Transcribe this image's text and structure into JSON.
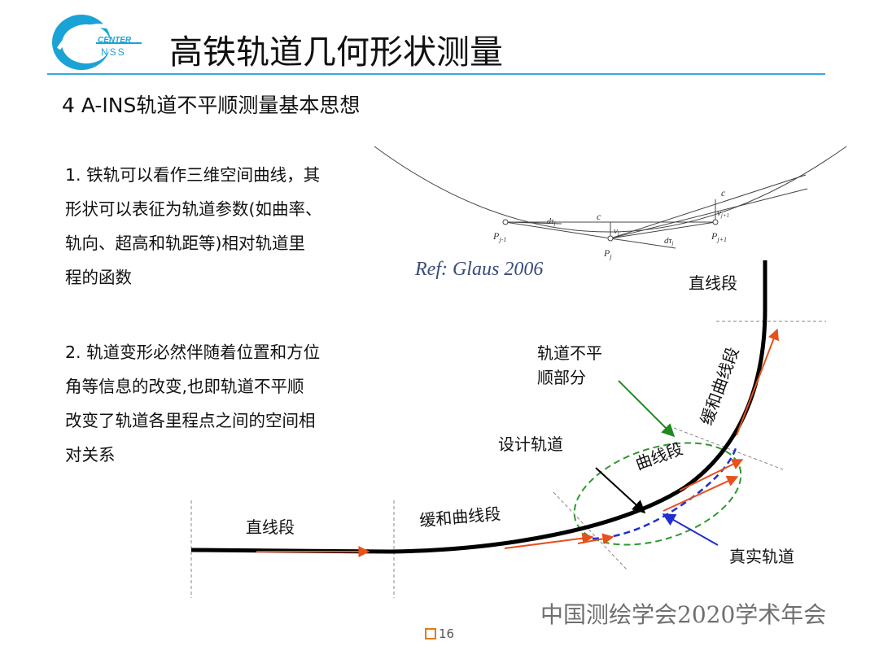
{
  "header": {
    "logo_text_top": "CENTER",
    "logo_text_bottom": "NSS",
    "title": "高铁轨道几何形状测量"
  },
  "section": {
    "heading": "4 A-INS轨道不平顺测量基本思想"
  },
  "paragraphs": {
    "p1": [
      "1. 铁轨可以看作三维空间曲线，其",
      "形状可以表征为轨道参数(如曲率、",
      "轨向、超高和轨距等)相对轨道里",
      "程的函数"
    ],
    "p2": [
      "2. 轨道变形必然伴随着位置和方位",
      "角等信息的改变,也即轨道不平顺",
      "改变了轨道各里程点之间的空间相",
      "对关系"
    ]
  },
  "ref_figure": {
    "ref_text": "Ref: Glaus 2006",
    "labels": {
      "c_top": "c",
      "c_mid": "c",
      "p_left": "P",
      "p_left_sub": "j-1",
      "p_mid": "P",
      "p_mid_sub": "j",
      "p_right": "P",
      "p_right_sub": "j+1",
      "v_mid": "v",
      "v_mid_sub": "j",
      "v_right": "v",
      "v_right_sub": "j+1",
      "d_left": "dτ",
      "d_left_sub": "j",
      "d_right": "dτ",
      "d_right_sub": "j"
    }
  },
  "track_diagram": {
    "straight_bottom": "直线段",
    "transition_bottom": "缓和曲线段",
    "curve": "曲线段",
    "transition_right": "缓和曲线段",
    "straight_top": "直线段",
    "irregular_part_line1": "轨道不平",
    "irregular_part_line2": "顺部分",
    "design_track": "设计轨道",
    "real_track": "真实轨道",
    "colors": {
      "design_track": "#000000",
      "real_track": "#1f2fd0",
      "arrows": "#e8501c",
      "irregular_pointer": "#1f8a1f",
      "ellipse": "#2e9a2e"
    }
  },
  "footer": {
    "org_text": "中国测绘学会2020学术年会",
    "page_number": "16"
  }
}
